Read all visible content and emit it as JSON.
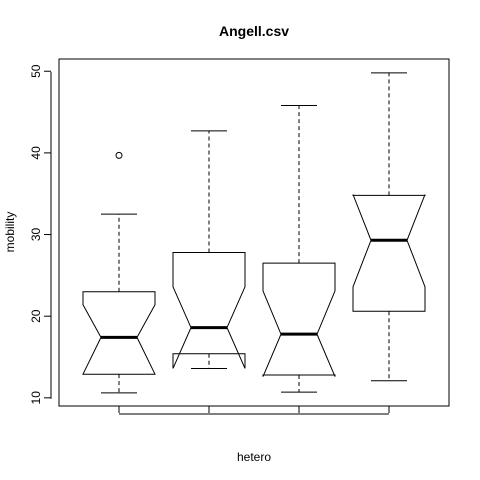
{
  "chart_data": {
    "type": "boxplot",
    "title": "Angell.csv",
    "xlabel": "hetero",
    "ylabel": "mobility",
    "ylim": [
      9.0,
      51.5
    ],
    "yticks": [
      10,
      20,
      30,
      40,
      50
    ],
    "notched": true,
    "boxes": [
      {
        "min": 10.6,
        "q1": 12.9,
        "median": 17.4,
        "q3": 23.0,
        "max": 32.5,
        "notch_low": 12.9,
        "notch_high": 21.4,
        "outliers": [
          39.7
        ]
      },
      {
        "min": 13.6,
        "q1": 15.4,
        "median": 18.6,
        "q3": 27.8,
        "max": 42.7,
        "notch_low": 13.6,
        "notch_high": 23.6,
        "outliers": []
      },
      {
        "min": 10.7,
        "q1": 12.8,
        "median": 17.8,
        "q3": 26.5,
        "max": 45.8,
        "notch_low": 12.6,
        "notch_high": 23.1,
        "outliers": []
      },
      {
        "min": 12.1,
        "q1": 20.6,
        "median": 29.3,
        "q3": 34.8,
        "max": 49.8,
        "notch_low": 23.6,
        "notch_high": 34.9,
        "outliers": []
      }
    ]
  }
}
